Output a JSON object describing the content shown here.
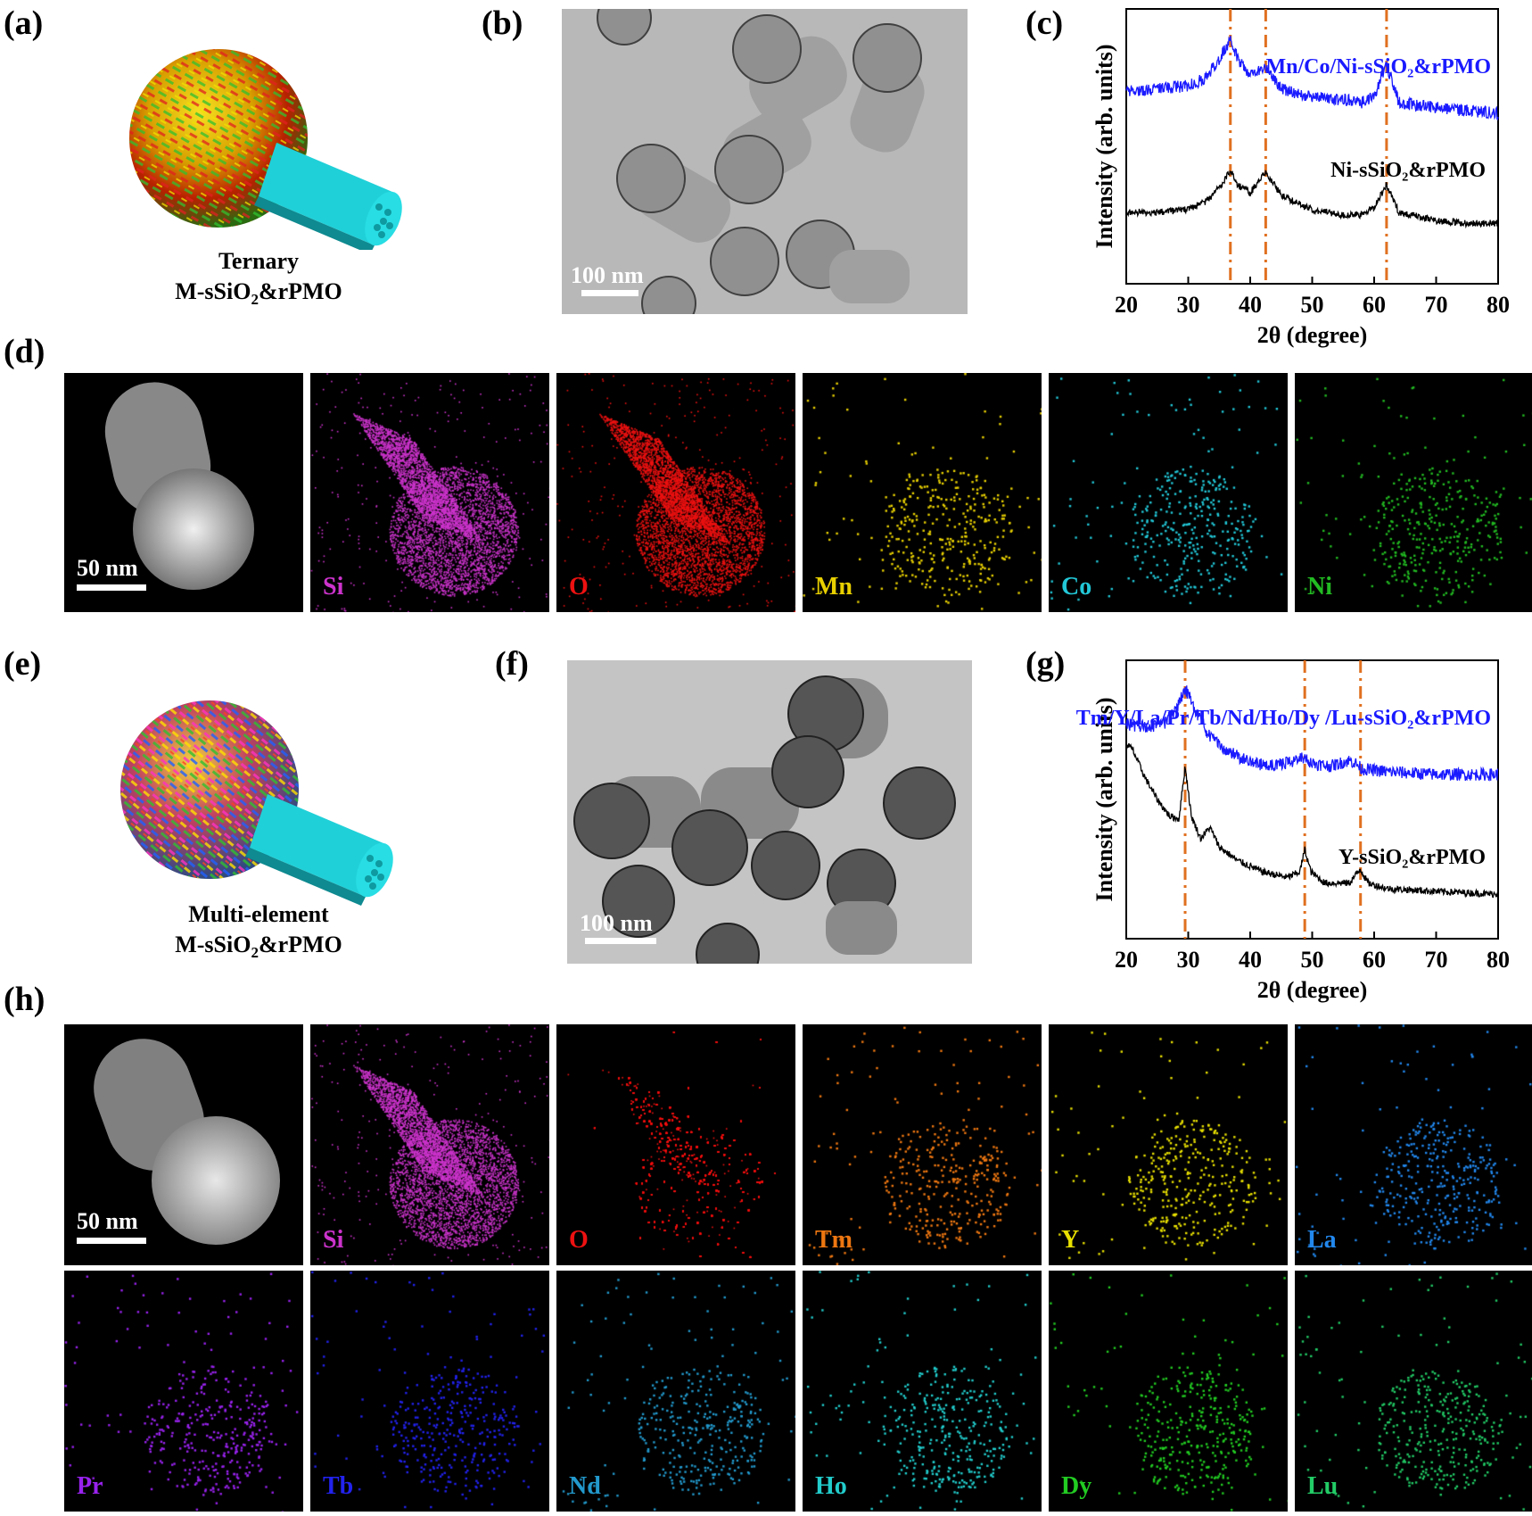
{
  "panels": {
    "a": {
      "label": "(a)",
      "caption_line1": "Ternary",
      "caption_line2_pre": "M-sSiO",
      "caption_line2_sub": "2",
      "caption_line2_post": "&rPMO"
    },
    "b": {
      "label": "(b)",
      "scale": "100 nm"
    },
    "c": {
      "label": "(c)"
    },
    "d": {
      "label": "(d)",
      "scale": "50 nm",
      "maps": [
        {
          "el": "Si",
          "color": "#cc33cc"
        },
        {
          "el": "O",
          "color": "#ee1111"
        },
        {
          "el": "Mn",
          "color": "#e8d000"
        },
        {
          "el": "Co",
          "color": "#22c8d8"
        },
        {
          "el": "Ni",
          "color": "#22bb22"
        }
      ]
    },
    "e": {
      "label": "(e)",
      "caption_line1": "Multi-element",
      "caption_line2_pre": "M-sSiO",
      "caption_line2_sub": "2",
      "caption_line2_post": "&rPMO"
    },
    "f": {
      "label": "(f)",
      "scale": "100 nm"
    },
    "g": {
      "label": "(g)"
    },
    "h": {
      "label": "(h)",
      "scale": "50 nm",
      "row1": [
        {
          "el": "Si",
          "color": "#cc33cc"
        },
        {
          "el": "O",
          "color": "#ee1111"
        },
        {
          "el": "Tm",
          "color": "#ee7711"
        },
        {
          "el": "Y",
          "color": "#e8e000"
        },
        {
          "el": "La",
          "color": "#2288ee"
        }
      ],
      "row2": [
        {
          "el": "Pr",
          "color": "#9922ee"
        },
        {
          "el": "Tb",
          "color": "#2222ee"
        },
        {
          "el": "Nd",
          "color": "#2299cc"
        },
        {
          "el": "Ho",
          "color": "#22cccc"
        },
        {
          "el": "Dy",
          "color": "#22cc22"
        },
        {
          "el": "Lu",
          "color": "#22cc66"
        }
      ]
    }
  },
  "chart_data": [
    {
      "type": "line",
      "id": "c",
      "xlabel": "2θ (degree)",
      "ylabel": "Intensity  (arb. units)",
      "xlim": [
        20,
        80
      ],
      "xticks": [
        20,
        30,
        40,
        50,
        60,
        70,
        80
      ],
      "peak_lines": [
        36.8,
        42.5,
        62.0
      ],
      "series": [
        {
          "name": "Mn/Co/Ni-sSiO₂&rPMO",
          "color": "#1a1aff",
          "x": [
            20,
            25,
            30,
            33,
            35,
            36.8,
            38,
            40,
            42.5,
            45,
            50,
            55,
            58,
            60,
            62,
            64,
            70,
            75,
            80
          ],
          "y": [
            0.7,
            0.71,
            0.72,
            0.75,
            0.82,
            0.88,
            0.82,
            0.76,
            0.79,
            0.71,
            0.68,
            0.67,
            0.66,
            0.68,
            0.8,
            0.66,
            0.64,
            0.63,
            0.62
          ]
        },
        {
          "name": "Ni-sSiO₂&rPMO",
          "color": "#000000",
          "x": [
            20,
            25,
            30,
            33,
            35,
            36.8,
            38,
            40,
            42.5,
            45,
            50,
            55,
            58,
            60,
            62,
            64,
            70,
            75,
            80
          ],
          "y": [
            0.26,
            0.26,
            0.27,
            0.3,
            0.35,
            0.41,
            0.36,
            0.33,
            0.41,
            0.32,
            0.27,
            0.25,
            0.25,
            0.28,
            0.36,
            0.26,
            0.23,
            0.22,
            0.22
          ]
        }
      ]
    },
    {
      "type": "line",
      "id": "g",
      "xlabel": "2θ (degree)",
      "ylabel": "Intensity  (arb. units)",
      "xlim": [
        20,
        80
      ],
      "xticks": [
        20,
        30,
        40,
        50,
        60,
        70,
        80
      ],
      "peak_lines": [
        29.5,
        48.8,
        57.8
      ],
      "series": [
        {
          "name": "Tm/Y/La/Pr/Tb/Nd/Ho/Dy /Lu-sSiO₂&rPMO",
          "color": "#1a1aff",
          "x": [
            20,
            23,
            26,
            28,
            29.5,
            31,
            33,
            36,
            40,
            44,
            47,
            48.8,
            50,
            53,
            56,
            57,
            58,
            62,
            70,
            80
          ],
          "y": [
            0.77,
            0.76,
            0.77,
            0.82,
            0.9,
            0.83,
            0.74,
            0.68,
            0.63,
            0.62,
            0.64,
            0.65,
            0.63,
            0.62,
            0.64,
            0.63,
            0.61,
            0.6,
            0.59,
            0.59
          ]
        },
        {
          "name": "Y-sSiO₂&rPMO",
          "color": "#000000",
          "x": [
            20,
            21,
            23,
            25,
            27,
            28.5,
            29.5,
            30.5,
            32,
            33.5,
            35,
            38,
            42,
            46,
            48,
            48.8,
            49.8,
            52,
            56,
            57.8,
            59,
            62,
            70,
            80
          ],
          "y": [
            0.7,
            0.68,
            0.58,
            0.5,
            0.44,
            0.43,
            0.62,
            0.44,
            0.36,
            0.4,
            0.33,
            0.28,
            0.24,
            0.22,
            0.24,
            0.32,
            0.24,
            0.2,
            0.2,
            0.25,
            0.2,
            0.18,
            0.17,
            0.16
          ]
        }
      ]
    }
  ]
}
